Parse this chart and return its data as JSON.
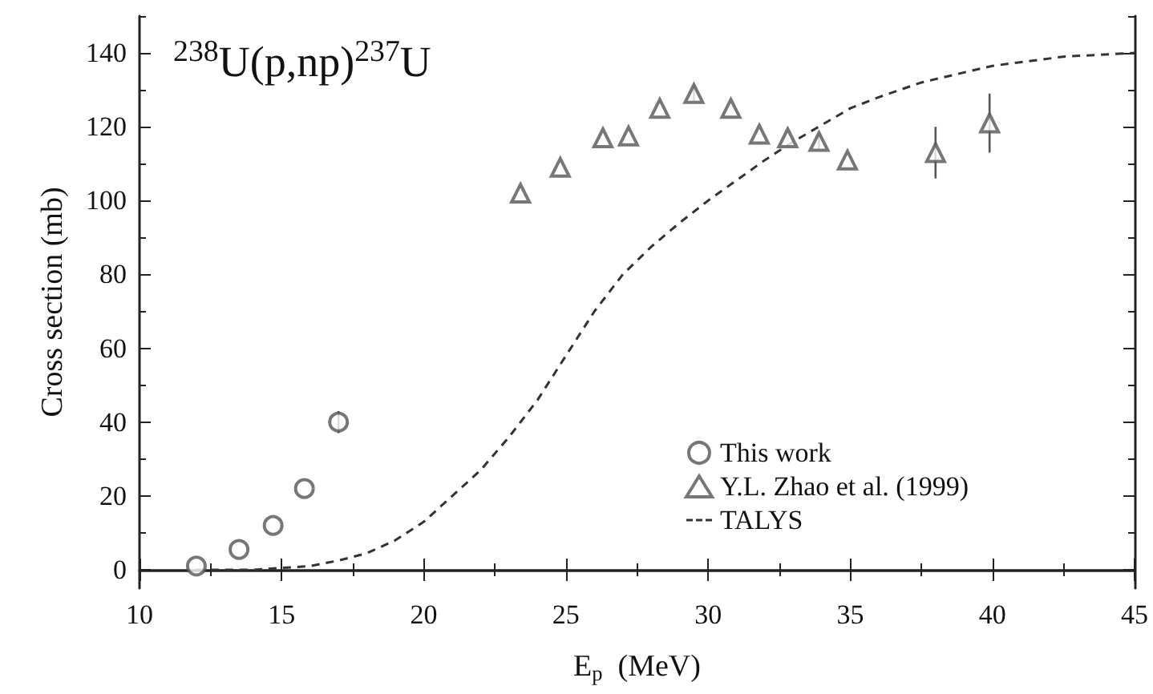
{
  "chart_data": {
    "type": "scatter",
    "title": "$^{238}$U(p,np)$^{237}$U",
    "xlabel": "E$_{p}$  (MeV)",
    "ylabel": "Cross section (mb)",
    "xlim": [
      10,
      45
    ],
    "xticks": [
      10,
      15,
      20,
      25,
      30,
      35,
      40,
      45
    ],
    "ylim": [
      -5,
      150
    ],
    "yticks": [
      0,
      20,
      40,
      60,
      80,
      100,
      120,
      140
    ],
    "grid": false,
    "legend": "bottom right",
    "series": [
      {
        "name": "This work",
        "marker": "circle",
        "color": "#555555",
        "x": [
          12.0,
          13.5,
          14.7,
          15.8,
          17.0
        ],
        "values": [
          1,
          5.5,
          12,
          22,
          40
        ],
        "errors": [
          null,
          null,
          null,
          null,
          3
        ]
      },
      {
        "name": "Y.L. Zhao et al. (1999)",
        "marker": "triangle",
        "color": "#555555",
        "x": [
          23.4,
          24.8,
          26.3,
          27.2,
          28.3,
          29.5,
          30.8,
          31.8,
          32.8,
          33.9,
          34.9,
          38.0,
          39.9
        ],
        "values": [
          102,
          109,
          117,
          117.5,
          125,
          129,
          125,
          118,
          117,
          116,
          111,
          113,
          121
        ],
        "errors": [
          null,
          null,
          null,
          null,
          null,
          2,
          null,
          null,
          null,
          2,
          null,
          7,
          8
        ]
      },
      {
        "name": "TALYS",
        "type": "line",
        "marker": "none",
        "line_style": "dashed",
        "color": "#333333",
        "x": [
          12,
          14,
          15,
          16,
          17,
          18,
          19,
          20,
          21,
          22,
          23,
          24,
          25,
          26,
          27,
          28,
          29,
          30,
          31,
          32,
          33,
          34,
          35,
          36,
          37.5,
          40,
          42.5,
          45
        ],
        "values": [
          0,
          0,
          0.5,
          1,
          2.5,
          4.5,
          8,
          13,
          20,
          27,
          36,
          46,
          58,
          70,
          80,
          87.5,
          94,
          100,
          105.5,
          111,
          116,
          120.5,
          125,
          128,
          132,
          136.5,
          139,
          140
        ]
      }
    ]
  }
}
